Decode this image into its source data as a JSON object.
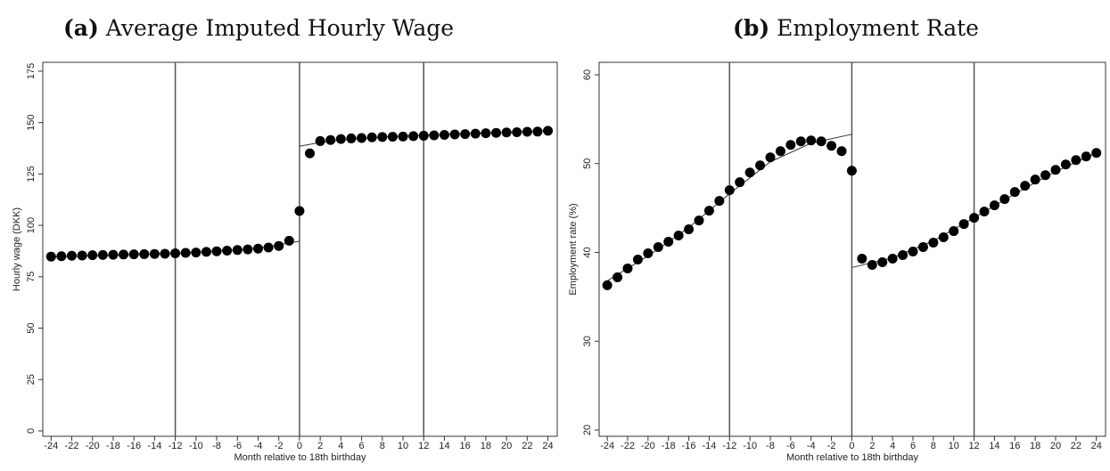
{
  "chart_data": [
    {
      "type": "scatter",
      "label": "(a)",
      "title": "Average Imputed Hourly Wage",
      "x_label": "Month relative to 18th birthday",
      "y_label": "Hourly wage (DKK)",
      "x": [
        -24,
        -23,
        -22,
        -21,
        -20,
        -19,
        -18,
        -17,
        -16,
        -15,
        -14,
        -13,
        -12,
        -11,
        -10,
        -9,
        -8,
        -7,
        -6,
        -5,
        -4,
        -3,
        -2,
        -1,
        0,
        1,
        2,
        3,
        4,
        5,
        6,
        7,
        8,
        9,
        10,
        11,
        12,
        13,
        14,
        15,
        16,
        17,
        18,
        19,
        20,
        21,
        22,
        23,
        24
      ],
      "values": [
        84.8,
        85,
        85.2,
        85.3,
        85.5,
        85.6,
        85.7,
        85.8,
        85.9,
        86,
        86.1,
        86.2,
        86.4,
        86.6,
        86.8,
        87.1,
        87.4,
        87.7,
        88,
        88.3,
        88.7,
        89.2,
        90,
        92.5,
        107,
        135,
        141,
        141.5,
        142,
        142.3,
        142.5,
        142.8,
        143,
        143.1,
        143.2,
        143.4,
        143.6,
        143.8,
        144,
        144.2,
        144.4,
        144.6,
        144.8,
        145,
        145.2,
        145.3,
        145.5,
        145.6,
        146
      ],
      "color": "#000000",
      "fits": [
        {
          "x": [
            -24,
            -18,
            -12,
            -6,
            -3,
            0
          ],
          "values": [
            84.6,
            85.4,
            86.4,
            88,
            89.6,
            92.3
          ]
        },
        {
          "x": [
            0,
            2,
            4,
            8,
            12,
            16,
            20,
            24
          ],
          "values": [
            138.5,
            140.3,
            141.5,
            143,
            143.8,
            144.6,
            145.3,
            146
          ]
        }
      ],
      "vlines": [
        -12,
        0,
        12
      ],
      "xlim": [
        -24.8,
        24.9
      ],
      "ylim": [
        -2.6,
        179.3
      ],
      "xticks": [
        -24,
        -22,
        -20,
        -18,
        -16,
        -14,
        -12,
        -10,
        -8,
        -6,
        -4,
        -2,
        0,
        2,
        4,
        6,
        8,
        10,
        12,
        14,
        16,
        18,
        20,
        22,
        24
      ],
      "yticks": [
        0,
        25,
        50,
        75,
        100,
        125,
        150,
        175
      ]
    },
    {
      "type": "scatter",
      "label": "(b)",
      "title": "Employment Rate",
      "x_label": "Month relative to 18th birthday",
      "y_label": "Employment rate (%)",
      "x": [
        -24,
        -23,
        -22,
        -21,
        -20,
        -19,
        -18,
        -17,
        -16,
        -15,
        -14,
        -13,
        -12,
        -11,
        -10,
        -9,
        -8,
        -7,
        -6,
        -5,
        -4,
        -3,
        -2,
        -1,
        0,
        1,
        2,
        3,
        4,
        5,
        6,
        7,
        8,
        9,
        10,
        11,
        12,
        13,
        14,
        15,
        16,
        17,
        18,
        19,
        20,
        21,
        22,
        23,
        24
      ],
      "values": [
        36.3,
        37.2,
        38.2,
        39.2,
        39.9,
        40.6,
        41.2,
        41.9,
        42.6,
        43.6,
        44.7,
        45.8,
        47,
        47.9,
        49,
        49.8,
        50.7,
        51.4,
        52.1,
        52.5,
        52.6,
        52.5,
        52,
        51.4,
        49.2,
        39.3,
        38.6,
        38.9,
        39.3,
        39.7,
        40.1,
        40.6,
        41.1,
        41.7,
        42.4,
        43.2,
        43.9,
        44.6,
        45.3,
        46,
        46.8,
        47.5,
        48.2,
        48.7,
        49.3,
        49.9,
        50.4,
        50.8,
        51.2
      ],
      "color": "#000000",
      "fits": [
        {
          "x": [
            -24,
            -20,
            -16,
            -12,
            -8,
            -4,
            0
          ],
          "values": [
            36.8,
            39.6,
            42.8,
            46.6,
            50.2,
            52.3,
            53.3
          ]
        },
        {
          "x": [
            0,
            4,
            8,
            12,
            16,
            20,
            24
          ],
          "values": [
            38.3,
            39.4,
            41.3,
            43.9,
            46.6,
            49.1,
            51.2
          ]
        }
      ],
      "vlines": [
        -12,
        0,
        12
      ],
      "xlim": [
        -24.8,
        24.9
      ],
      "ylim": [
        19.3,
        61.4
      ],
      "xticks": [
        -24,
        -22,
        -20,
        -18,
        -16,
        -14,
        -12,
        -10,
        -8,
        -6,
        -4,
        -2,
        0,
        2,
        4,
        6,
        8,
        10,
        12,
        14,
        16,
        18,
        20,
        22,
        24
      ],
      "yticks": [
        20,
        30,
        40,
        50,
        60
      ]
    }
  ]
}
